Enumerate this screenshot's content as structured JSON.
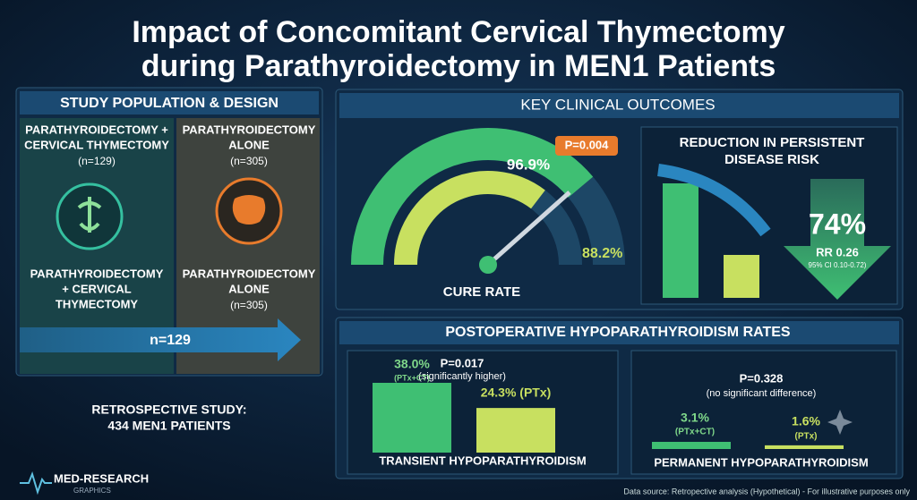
{
  "header": {
    "title_line1": "Impact of Concomitant Cervical Thymectomy",
    "title_line2": "during Parathyroidectomy in MEN1 Patients"
  },
  "study": {
    "title": "STUDY POPULATION & DESIGN",
    "groups": [
      {
        "label_line1": "PARATHYROIDECTOMY +",
        "label_line2": "CERVICAL THYMECTOMY",
        "n": "(n=129)",
        "bottom_line1": "PARATHYROIDECTOMY",
        "bottom_line2": "+ CERVICAL",
        "bottom_line3": "THYMECTOMY"
      },
      {
        "label_line1": "PARATHYROIDECTOMY",
        "label_line2": "ALONE",
        "n": "(n=305)",
        "bottom_line1": "PARATHYROIDECTOMY",
        "bottom_line2": "ALONE",
        "bottom_line3": "(n=305)"
      }
    ],
    "arrow_label": "n=129",
    "footer_line1": "RETROSPECTIVE STUDY:",
    "footer_line2": "434 MEN1 PATIENTS"
  },
  "outcomes": {
    "title": "KEY CLINICAL OUTCOMES",
    "cure": {
      "label": "CURE RATE",
      "p": "P=0.004",
      "values": [
        96.9,
        88.2
      ],
      "value_labels": [
        "96.9%",
        "88.2%"
      ]
    },
    "risk": {
      "title_line1": "REDUCTION IN PERSISTENT",
      "title_line2": "DISEASE RISK",
      "reduction": "74%",
      "rr": "RR 0.26",
      "ci": "95% CI 0.10-0.72)"
    }
  },
  "hypo": {
    "title": "POSTOPERATIVE HYPOPARATHYROIDISM RATES",
    "transient": {
      "label": "TRANSIENT HYPOPARATHYROIDISM",
      "p": "P=0.017",
      "note": "(significantly higher)",
      "values": [
        38.0,
        24.3
      ],
      "value_labels": [
        "38.0%",
        "24.3% (PTx)"
      ],
      "group_label": "(PTx+CT)"
    },
    "permanent": {
      "label": "PERMANENT HYPOPARATHYROIDISM",
      "p": "P=0.328",
      "note": "(no significant difference)",
      "values": [
        3.1,
        1.6
      ],
      "value_labels": [
        "3.1%",
        "1.6%"
      ],
      "group_labels": [
        "(PTx+CT)",
        "(PTx)"
      ]
    }
  },
  "footer": {
    "brand": "MED-RESEARCH",
    "brand_sub": "GRAPHICS",
    "source": "Data source: Retropective analysis (Hypothetical) - For illustrative purposes only"
  }
}
